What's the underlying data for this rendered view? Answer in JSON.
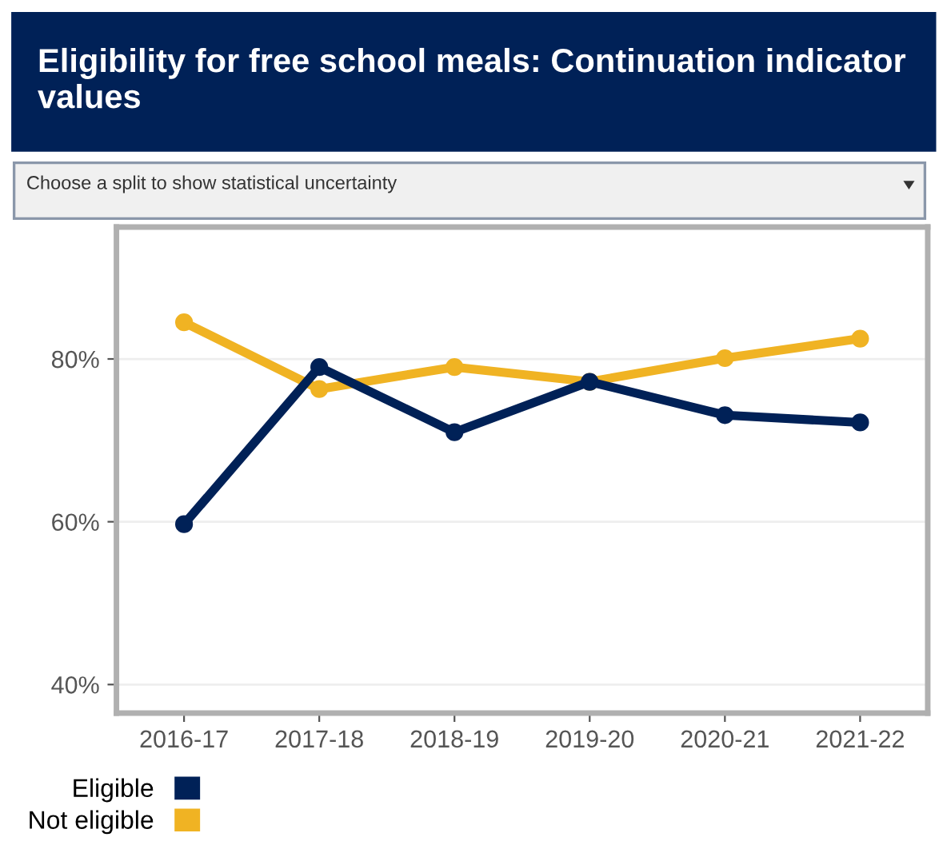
{
  "chart_data": {
    "type": "line",
    "title": "Eligibility for free school meals: Continuation indicator values",
    "annotations": [
      "Choose a split to show statistical uncertainty"
    ],
    "categories": [
      "2016-17",
      "2017-18",
      "2018-19",
      "2019-20",
      "2020-21",
      "2021-22"
    ],
    "series": [
      {
        "name": "Eligible",
        "color": "#002157",
        "values": [
          59.7,
          79.0,
          71.0,
          77.2,
          73.1,
          72.2
        ]
      },
      {
        "name": "Not eligible",
        "color": "#f0b323",
        "values": [
          84.5,
          76.3,
          79.0,
          77.2,
          80.1,
          82.5
        ]
      }
    ],
    "ylim": [
      36.5,
      96.2
    ],
    "yticks": [
      {
        "value": 40,
        "label": "40%"
      },
      {
        "value": 60,
        "label": "60%"
      },
      {
        "value": 80,
        "label": "80%"
      }
    ],
    "grid": "y",
    "legend": "bottom left",
    "marker": "circle",
    "line_style": "solid"
  }
}
